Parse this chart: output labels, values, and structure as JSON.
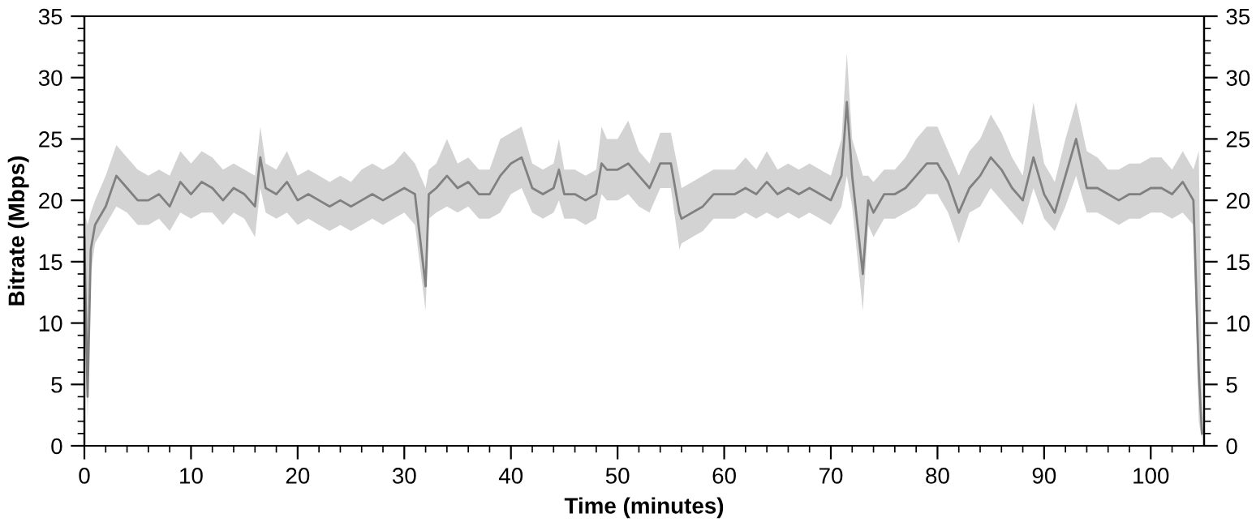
{
  "chart_data": {
    "type": "line",
    "xlabel": "Time (minutes)",
    "ylabel": "Bitrate (Mbps)",
    "xlim": [
      0,
      105
    ],
    "ylim": [
      0,
      35
    ],
    "y2lim": [
      0,
      35
    ],
    "xticks": [
      0,
      {
        "value": 2,
        "label": null
      },
      {
        "value": 4,
        "label": null
      },
      {
        "value": 6,
        "label": null
      },
      {
        "value": 8,
        "label": null
      },
      10,
      {
        "value": 12,
        "label": null
      },
      {
        "value": 14,
        "label": null
      },
      {
        "value": 16,
        "label": null
      },
      {
        "value": 18,
        "label": null
      },
      20,
      {
        "value": 22,
        "label": null
      },
      {
        "value": 24,
        "label": null
      },
      {
        "value": 26,
        "label": null
      },
      {
        "value": 28,
        "label": null
      },
      30,
      {
        "value": 32,
        "label": null
      },
      {
        "value": 34,
        "label": null
      },
      {
        "value": 36,
        "label": null
      },
      {
        "value": 38,
        "label": null
      },
      40,
      {
        "value": 42,
        "label": null
      },
      {
        "value": 44,
        "label": null
      },
      {
        "value": 46,
        "label": null
      },
      {
        "value": 48,
        "label": null
      },
      50,
      {
        "value": 52,
        "label": null
      },
      {
        "value": 54,
        "label": null
      },
      {
        "value": 56,
        "label": null
      },
      {
        "value": 58,
        "label": null
      },
      60,
      {
        "value": 62,
        "label": null
      },
      {
        "value": 64,
        "label": null
      },
      {
        "value": 66,
        "label": null
      },
      {
        "value": 68,
        "label": null
      },
      70,
      {
        "value": 72,
        "label": null
      },
      {
        "value": 74,
        "label": null
      },
      {
        "value": 76,
        "label": null
      },
      {
        "value": 78,
        "label": null
      },
      80,
      {
        "value": 82,
        "label": null
      },
      {
        "value": 84,
        "label": null
      },
      {
        "value": 86,
        "label": null
      },
      {
        "value": 88,
        "label": null
      },
      90,
      {
        "value": 92,
        "label": null
      },
      {
        "value": 94,
        "label": null
      },
      {
        "value": 96,
        "label": null
      },
      {
        "value": 98,
        "label": null
      },
      100,
      {
        "value": 102,
        "label": null
      },
      {
        "value": 104,
        "label": null
      }
    ],
    "yticks": [
      0,
      {
        "value": 1,
        "label": null
      },
      {
        "value": 2,
        "label": null
      },
      {
        "value": 3,
        "label": null
      },
      {
        "value": 4,
        "label": null
      },
      5,
      {
        "value": 6,
        "label": null
      },
      {
        "value": 7,
        "label": null
      },
      {
        "value": 8,
        "label": null
      },
      {
        "value": 9,
        "label": null
      },
      10,
      {
        "value": 11,
        "label": null
      },
      {
        "value": 12,
        "label": null
      },
      {
        "value": 13,
        "label": null
      },
      {
        "value": 14,
        "label": null
      },
      15,
      {
        "value": 16,
        "label": null
      },
      {
        "value": 17,
        "label": null
      },
      {
        "value": 18,
        "label": null
      },
      {
        "value": 19,
        "label": null
      },
      20,
      {
        "value": 21,
        "label": null
      },
      {
        "value": 22,
        "label": null
      },
      {
        "value": 23,
        "label": null
      },
      {
        "value": 24,
        "label": null
      },
      25,
      {
        "value": 26,
        "label": null
      },
      {
        "value": 27,
        "label": null
      },
      {
        "value": 28,
        "label": null
      },
      {
        "value": 29,
        "label": null
      },
      30,
      {
        "value": 31,
        "label": null
      },
      {
        "value": 32,
        "label": null
      },
      {
        "value": 33,
        "label": null
      },
      {
        "value": 34,
        "label": null
      },
      35
    ],
    "y2ticks": [
      0,
      {
        "value": 1,
        "label": null
      },
      {
        "value": 2,
        "label": null
      },
      {
        "value": 3,
        "label": null
      },
      {
        "value": 4,
        "label": null
      },
      5,
      {
        "value": 6,
        "label": null
      },
      {
        "value": 7,
        "label": null
      },
      {
        "value": 8,
        "label": null
      },
      {
        "value": 9,
        "label": null
      },
      10,
      {
        "value": 11,
        "label": null
      },
      {
        "value": 12,
        "label": null
      },
      {
        "value": 13,
        "label": null
      },
      {
        "value": 14,
        "label": null
      },
      15,
      {
        "value": 16,
        "label": null
      },
      {
        "value": 17,
        "label": null
      },
      {
        "value": 18,
        "label": null
      },
      {
        "value": 19,
        "label": null
      },
      20,
      {
        "value": 21,
        "label": null
      },
      {
        "value": 22,
        "label": null
      },
      {
        "value": 23,
        "label": null
      },
      {
        "value": 24,
        "label": null
      },
      25,
      {
        "value": 26,
        "label": null
      },
      {
        "value": 27,
        "label": null
      },
      {
        "value": 28,
        "label": null
      },
      {
        "value": 29,
        "label": null
      },
      30,
      {
        "value": 31,
        "label": null
      },
      {
        "value": 32,
        "label": null
      },
      {
        "value": 33,
        "label": null
      },
      {
        "value": 34,
        "label": null
      },
      35
    ],
    "grid": false,
    "legend": false,
    "series": [
      {
        "color": "#808080",
        "x": [
          0,
          0.3,
          0.6,
          1,
          2,
          3,
          4,
          5,
          6,
          7,
          8,
          9,
          10,
          11,
          12,
          13,
          14,
          15,
          16,
          16.5,
          17,
          18,
          19,
          20,
          21,
          22,
          23,
          24,
          25,
          26,
          27,
          28,
          29,
          30,
          31,
          32,
          32.3,
          33,
          34,
          35,
          36,
          37,
          38,
          39,
          40,
          41,
          42,
          43,
          44,
          44.5,
          45,
          46,
          47,
          48,
          48.5,
          49,
          50,
          51,
          52,
          53,
          54,
          55,
          55.8,
          56,
          57,
          58,
          59,
          60,
          61,
          62,
          63,
          64,
          65,
          66,
          67,
          68,
          69,
          70,
          71,
          71.5,
          72,
          73,
          73.5,
          74,
          75,
          76,
          77,
          78,
          79,
          80,
          81,
          82,
          83,
          84,
          85,
          86,
          87,
          88,
          89,
          90,
          91,
          92,
          93,
          94,
          95,
          96,
          97,
          98,
          99,
          100,
          101,
          102,
          103,
          104,
          104.5,
          104.8
        ],
        "values": [
          17,
          4,
          16,
          18,
          19.5,
          22,
          21,
          20,
          20,
          20.5,
          19.5,
          21.5,
          20.5,
          21.5,
          21,
          20,
          21,
          20.5,
          19.5,
          23.5,
          21,
          20.5,
          21.5,
          20,
          20.5,
          20,
          19.5,
          20,
          19.5,
          20,
          20.5,
          20,
          20.5,
          21,
          20.5,
          13,
          20.5,
          21,
          22,
          21,
          21.5,
          20.5,
          20.5,
          22,
          23,
          23.5,
          21,
          20.5,
          21,
          22.5,
          20.5,
          20.5,
          20,
          20.5,
          23,
          22.5,
          22.5,
          23,
          22,
          21,
          23,
          23,
          19,
          18.5,
          19,
          19.5,
          20.5,
          20.5,
          20.5,
          21,
          20.5,
          21.5,
          20.5,
          21,
          20.5,
          21,
          20.5,
          20,
          22,
          28,
          22,
          14,
          20,
          19,
          20.5,
          20.5,
          21,
          22,
          23,
          23,
          21.5,
          19,
          21,
          22,
          23.5,
          22.5,
          21,
          20,
          23.5,
          20.5,
          19,
          22,
          25,
          21,
          21,
          20.5,
          20,
          20.5,
          20.5,
          21,
          21,
          20.5,
          21.5,
          20,
          6,
          1
        ],
        "upper": [
          19,
          18,
          19,
          20,
          22,
          24.5,
          23.5,
          22.5,
          22,
          22.5,
          22,
          24,
          23,
          24,
          23.5,
          22.5,
          23,
          22.5,
          22,
          26,
          23,
          22.5,
          24,
          22,
          22.5,
          22,
          21.5,
          22,
          21.5,
          22.5,
          23,
          22.5,
          23,
          24,
          23,
          21,
          22.5,
          23,
          25,
          23,
          23.5,
          22.5,
          22.5,
          25,
          25.5,
          26,
          23,
          22.5,
          23,
          25,
          22.5,
          22.5,
          22,
          22.5,
          26,
          25,
          25,
          26.5,
          24,
          23,
          25.5,
          25.5,
          22,
          21,
          21.5,
          22,
          22.5,
          22.5,
          22.5,
          23.5,
          22.5,
          24,
          22.5,
          23,
          22.5,
          23,
          22.5,
          22,
          25,
          32,
          25,
          22,
          22,
          21.5,
          22.5,
          22.5,
          23.5,
          25,
          26,
          26,
          24,
          22,
          24,
          25,
          27,
          25.5,
          23.5,
          22,
          28,
          23,
          21.5,
          25,
          28,
          24,
          23.5,
          22.5,
          22.5,
          23,
          23,
          23.5,
          23.5,
          22.5,
          24,
          22.5,
          24,
          5
        ],
        "lower": [
          15,
          2,
          14,
          16.5,
          18,
          19.5,
          19,
          18,
          18,
          18.5,
          17.5,
          19,
          18.5,
          19,
          19,
          18,
          19,
          18.5,
          17,
          21,
          19,
          18.5,
          19,
          18,
          18.5,
          18,
          17.5,
          18,
          17.5,
          18,
          18.5,
          18,
          18.5,
          19,
          18,
          11,
          18.5,
          19,
          19.5,
          19,
          19.5,
          18.5,
          18.5,
          19,
          20.5,
          21,
          19,
          18.5,
          19,
          20,
          18.5,
          18.5,
          18,
          18.5,
          20.5,
          20,
          20,
          20.5,
          19.5,
          19,
          21,
          21,
          16,
          16.5,
          17,
          17.5,
          18.5,
          18.5,
          18.5,
          19,
          18.5,
          19,
          18.5,
          19,
          18.5,
          19,
          18.5,
          18,
          19.5,
          22,
          19.5,
          11,
          18,
          17,
          18.5,
          18.5,
          19,
          19.5,
          20.5,
          20.5,
          19,
          16.5,
          19,
          19.5,
          21,
          20,
          19,
          18,
          21,
          18.5,
          17.5,
          19.5,
          22,
          19,
          19,
          18.5,
          18,
          18.5,
          18.5,
          19,
          19,
          18.5,
          19,
          18,
          2,
          0.5
        ]
      }
    ]
  }
}
